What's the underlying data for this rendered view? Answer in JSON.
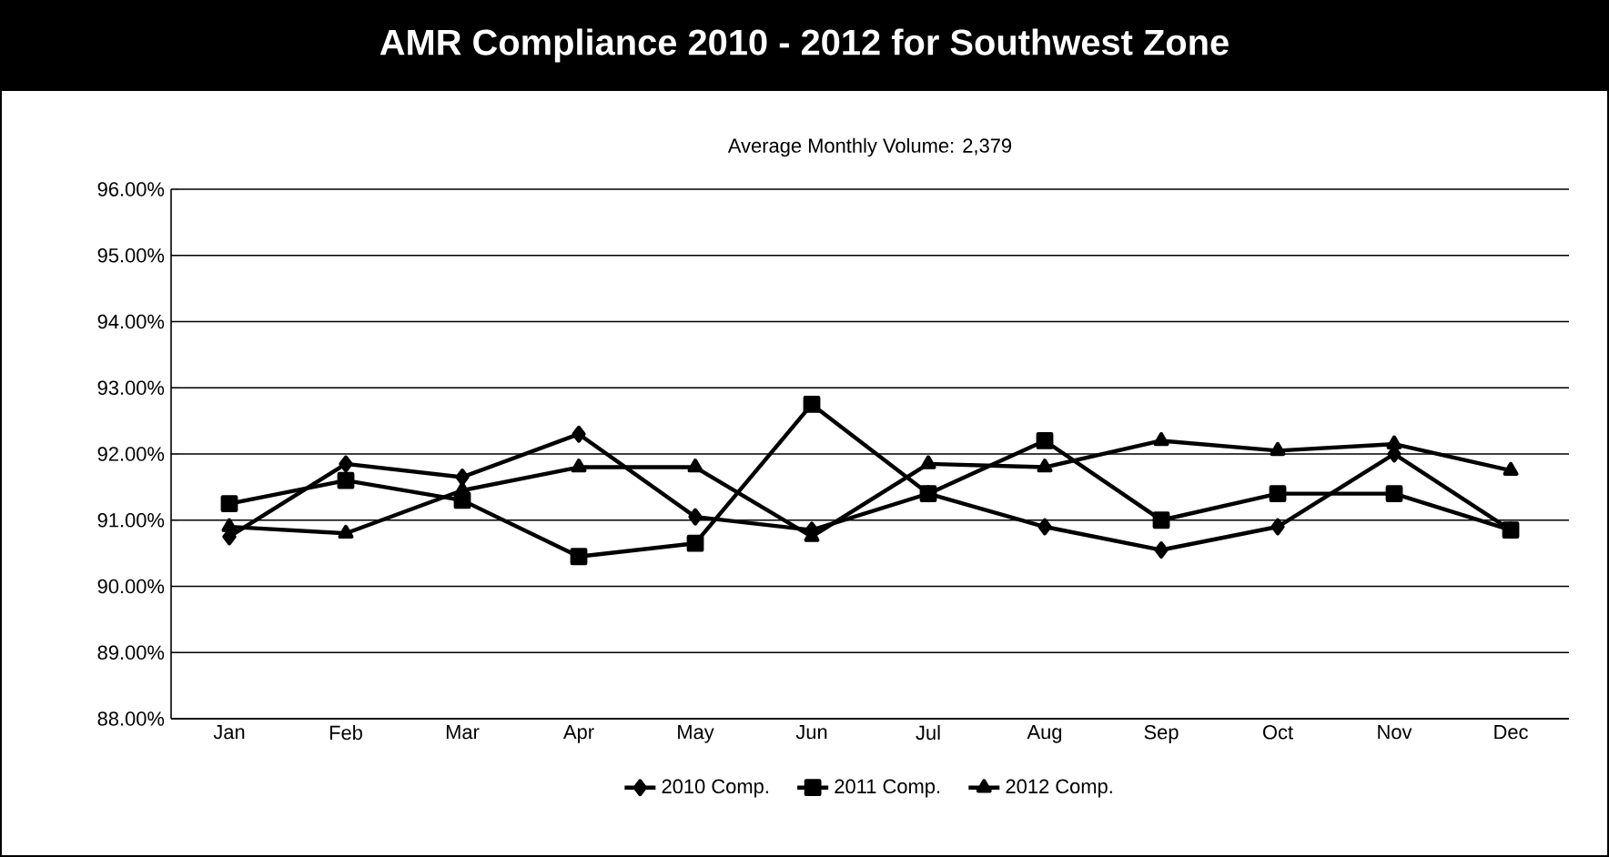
{
  "chart_data": {
    "type": "line",
    "title": "AMR Compliance 2010 - 2012 for Southwest Zone",
    "subtitle": "Average Monthly Volume: 2,379",
    "categories": [
      "Jan",
      "Feb",
      "Mar",
      "Apr",
      "May",
      "Jun",
      "Jul",
      "Aug",
      "Sep",
      "Oct",
      "Nov",
      "Dec"
    ],
    "series": [
      {
        "name": "2010 Comp.",
        "color": "#000000",
        "marker": "diamond",
        "values": [
          90.75,
          91.85,
          91.65,
          92.3,
          91.05,
          90.85,
          91.4,
          90.9,
          90.55,
          90.9,
          92.0,
          90.85
        ]
      },
      {
        "name": "2011 Comp.",
        "color": "#000000",
        "marker": "square",
        "values": [
          91.25,
          91.6,
          91.3,
          90.45,
          90.65,
          92.75,
          91.4,
          92.2,
          91.0,
          91.4,
          91.4,
          90.85
        ]
      },
      {
        "name": "2012 Comp.",
        "color": "#000000",
        "marker": "triangle",
        "values": [
          90.9,
          90.8,
          91.45,
          91.8,
          91.8,
          90.75,
          91.85,
          91.8,
          92.2,
          92.05,
          92.15,
          91.75
        ]
      }
    ],
    "ylim": [
      88,
      96
    ],
    "yticks": [
      {
        "value": 88,
        "label": "88.00%"
      },
      {
        "value": 89,
        "label": "89.00%"
      },
      {
        "value": 90,
        "label": "90.00%"
      },
      {
        "value": 91,
        "label": "91.00%"
      },
      {
        "value": 92,
        "label": "92.00%"
      },
      {
        "value": 93,
        "label": "93.00%"
      },
      {
        "value": 94,
        "label": "94.00%"
      },
      {
        "value": 95,
        "label": "95.00%"
      },
      {
        "value": 96,
        "label": "96.00%"
      }
    ],
    "grid": "y",
    "legend": "bottom",
    "line_style": "solid"
  }
}
